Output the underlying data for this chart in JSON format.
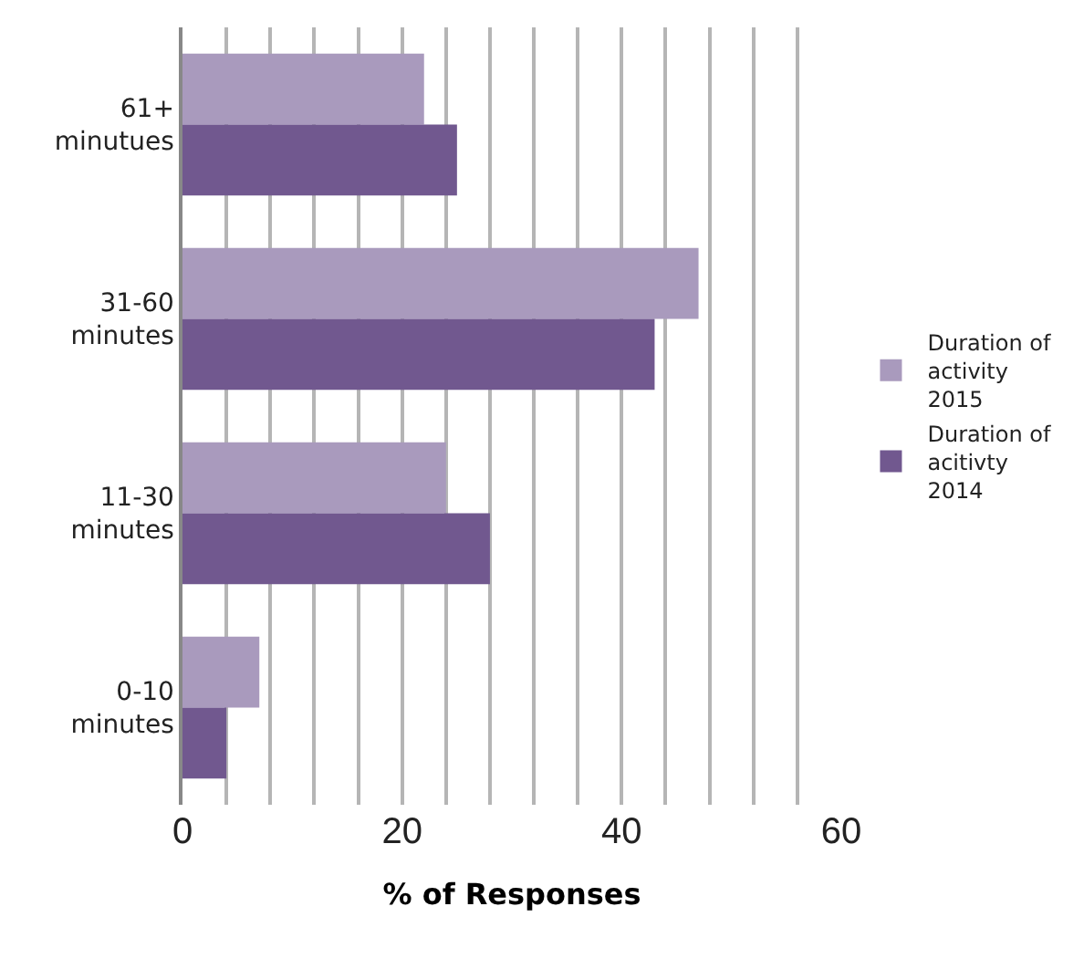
{
  "chart_data": {
    "type": "bar",
    "orientation": "horizontal",
    "categories": [
      "61+ minutues",
      "31-60 minutes",
      "11-30 minutes",
      "0-10 minutes"
    ],
    "series": [
      {
        "name": "Duration of activity 2015",
        "color": "#a99abd",
        "values": [
          22,
          47,
          24,
          7
        ]
      },
      {
        "name": "Duration of acitivty 2014",
        "color": "#71588f",
        "values": [
          25,
          43,
          28,
          4
        ]
      }
    ],
    "xlabel": "% of Responses",
    "xlim": [
      0,
      60
    ],
    "xticks": [
      0,
      {
        "value": 4,
        "label": null
      },
      {
        "value": 8,
        "label": null
      },
      {
        "value": 12,
        "label": null
      },
      {
        "value": 16,
        "label": null
      },
      20,
      {
        "value": 24,
        "label": null
      },
      {
        "value": 28,
        "label": null
      },
      {
        "value": 32,
        "label": null
      },
      {
        "value": 36,
        "label": null
      },
      40,
      {
        "value": 44,
        "label": null
      },
      {
        "value": 48,
        "label": null
      },
      {
        "value": 52,
        "label": null
      },
      {
        "value": 56,
        "label": null
      },
      60
    ],
    "grid": "x",
    "legend": "right"
  }
}
